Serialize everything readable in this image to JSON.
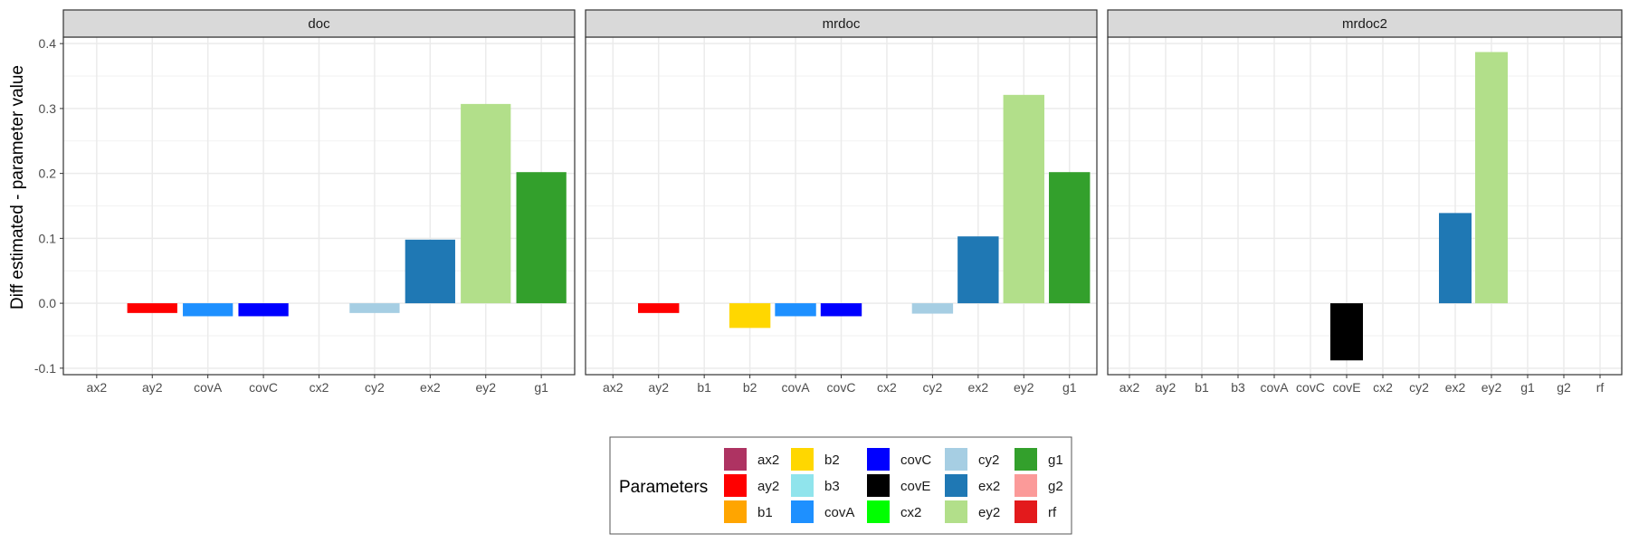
{
  "chart_data": {
    "type": "bar",
    "ylabel": "Diff estimated - parameter value",
    "ylim": [
      -0.11,
      0.41
    ],
    "y_ticks": [
      -0.1,
      0.0,
      0.1,
      0.2,
      0.3,
      0.4
    ],
    "y_tick_labels": [
      "-0.1",
      "0.0",
      "0.1",
      "0.2",
      "0.3",
      "0.4"
    ],
    "grid": true,
    "legend_position": "bottom",
    "legend_title": "Parameters",
    "legend": [
      {
        "name": "ax2",
        "color": "#AE3362"
      },
      {
        "name": "ay2",
        "color": "#FF0000"
      },
      {
        "name": "b1",
        "color": "#FFA500"
      },
      {
        "name": "b2",
        "color": "#FFD700"
      },
      {
        "name": "b3",
        "color": "#90E4EC"
      },
      {
        "name": "covA",
        "color": "#1E90FF"
      },
      {
        "name": "covC",
        "color": "#0000FF"
      },
      {
        "name": "covE",
        "color": "#000000"
      },
      {
        "name": "cx2",
        "color": "#00FF00"
      },
      {
        "name": "cy2",
        "color": "#A6CEE3"
      },
      {
        "name": "ex2",
        "color": "#1F78B4"
      },
      {
        "name": "ey2",
        "color": "#B2DF8A"
      },
      {
        "name": "g1",
        "color": "#33A02C"
      },
      {
        "name": "g2",
        "color": "#FB9A99"
      },
      {
        "name": "rf",
        "color": "#E31A1C"
      }
    ],
    "panels": [
      {
        "title": "doc",
        "categories": [
          "ax2",
          "ay2",
          "covA",
          "covC",
          "cx2",
          "cy2",
          "ex2",
          "ey2",
          "g1"
        ],
        "values": [
          0.0,
          -0.015,
          -0.02,
          -0.02,
          0.0,
          -0.015,
          0.098,
          0.307,
          0.202
        ]
      },
      {
        "title": "mrdoc",
        "categories": [
          "ax2",
          "ay2",
          "b1",
          "b2",
          "covA",
          "covC",
          "cx2",
          "cy2",
          "ex2",
          "ey2",
          "g1"
        ],
        "values": [
          0.0,
          -0.015,
          0.0,
          -0.038,
          -0.02,
          -0.02,
          0.0,
          -0.016,
          0.103,
          0.321,
          0.202
        ]
      },
      {
        "title": "mrdoc2",
        "categories": [
          "ax2",
          "ay2",
          "b1",
          "b3",
          "covA",
          "covC",
          "covE",
          "cx2",
          "cy2",
          "ex2",
          "ey2",
          "g1",
          "g2",
          "rf"
        ],
        "values": [
          0.0,
          0.0,
          0.0,
          0.0,
          0.0,
          0.0,
          -0.088,
          0.0,
          0.0,
          0.139,
          0.387,
          0.0,
          0.0,
          0.0
        ]
      }
    ]
  }
}
